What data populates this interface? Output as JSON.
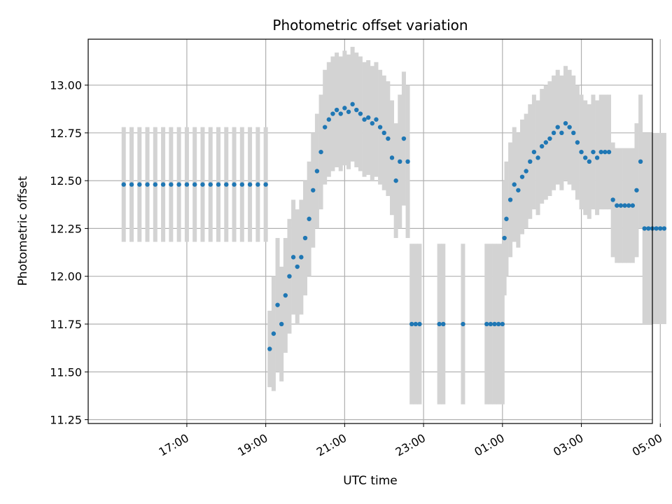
{
  "chart_data": {
    "type": "scatter",
    "title": "Photometric offset variation",
    "xlabel": "UTC time",
    "ylabel": "Photometric offset",
    "x_unit": "hours since 00:00 of first day (values above 24 are the next day)",
    "xlim": [
      14.5,
      28.8
    ],
    "ylim": [
      11.23,
      13.24
    ],
    "x_ticks": [
      {
        "value": 17,
        "label": "17:00"
      },
      {
        "value": 19,
        "label": "19:00"
      },
      {
        "value": 21,
        "label": "21:00"
      },
      {
        "value": 23,
        "label": "23:00"
      },
      {
        "value": 25,
        "label": "01:00"
      },
      {
        "value": 27,
        "label": "03:00"
      },
      {
        "value": 29,
        "label": "05:00"
      }
    ],
    "y_ticks": [
      {
        "value": 11.25,
        "label": "11.25"
      },
      {
        "value": 11.5,
        "label": "11.50"
      },
      {
        "value": 11.75,
        "label": "11.75"
      },
      {
        "value": 12.0,
        "label": "12.00"
      },
      {
        "value": 12.25,
        "label": "12.25"
      },
      {
        "value": 12.5,
        "label": "12.50"
      },
      {
        "value": 12.75,
        "label": "12.75"
      },
      {
        "value": 13.0,
        "label": "13.00"
      }
    ],
    "grid": true,
    "series": [
      {
        "name": "Photometric offset",
        "marker_color": "#1f77b4",
        "errorbar_color": "#d3d3d3",
        "note": "each point: [time_hours, offset, error]",
        "points": [
          [
            15.4,
            12.48,
            0.3
          ],
          [
            15.6,
            12.48,
            0.3
          ],
          [
            15.8,
            12.48,
            0.3
          ],
          [
            16.0,
            12.48,
            0.3
          ],
          [
            16.2,
            12.48,
            0.3
          ],
          [
            16.4,
            12.48,
            0.3
          ],
          [
            16.6,
            12.48,
            0.3
          ],
          [
            16.8,
            12.48,
            0.3
          ],
          [
            17.0,
            12.48,
            0.3
          ],
          [
            17.2,
            12.48,
            0.3
          ],
          [
            17.4,
            12.48,
            0.3
          ],
          [
            17.6,
            12.48,
            0.3
          ],
          [
            17.8,
            12.48,
            0.3
          ],
          [
            18.0,
            12.48,
            0.3
          ],
          [
            18.2,
            12.48,
            0.3
          ],
          [
            18.4,
            12.48,
            0.3
          ],
          [
            18.6,
            12.48,
            0.3
          ],
          [
            18.8,
            12.48,
            0.3
          ],
          [
            19.0,
            12.48,
            0.3
          ],
          [
            19.1,
            11.62,
            0.2
          ],
          [
            19.2,
            11.7,
            0.3
          ],
          [
            19.3,
            11.85,
            0.35
          ],
          [
            19.4,
            11.75,
            0.3
          ],
          [
            19.5,
            11.9,
            0.3
          ],
          [
            19.6,
            12.0,
            0.3
          ],
          [
            19.7,
            12.1,
            0.3
          ],
          [
            19.8,
            12.05,
            0.3
          ],
          [
            19.9,
            12.1,
            0.3
          ],
          [
            20.0,
            12.2,
            0.3
          ],
          [
            20.1,
            12.3,
            0.3
          ],
          [
            20.2,
            12.45,
            0.3
          ],
          [
            20.3,
            12.55,
            0.3
          ],
          [
            20.4,
            12.65,
            0.3
          ],
          [
            20.5,
            12.78,
            0.3
          ],
          [
            20.6,
            12.82,
            0.3
          ],
          [
            20.7,
            12.85,
            0.3
          ],
          [
            20.8,
            12.87,
            0.3
          ],
          [
            20.9,
            12.85,
            0.3
          ],
          [
            21.0,
            12.88,
            0.3
          ],
          [
            21.1,
            12.86,
            0.3
          ],
          [
            21.2,
            12.9,
            0.3
          ],
          [
            21.3,
            12.87,
            0.3
          ],
          [
            21.4,
            12.85,
            0.3
          ],
          [
            21.5,
            12.82,
            0.3
          ],
          [
            21.6,
            12.83,
            0.3
          ],
          [
            21.7,
            12.8,
            0.3
          ],
          [
            21.8,
            12.82,
            0.3
          ],
          [
            21.9,
            12.78,
            0.3
          ],
          [
            22.0,
            12.75,
            0.3
          ],
          [
            22.1,
            12.72,
            0.3
          ],
          [
            22.2,
            12.62,
            0.3
          ],
          [
            22.3,
            12.5,
            0.3
          ],
          [
            22.4,
            12.6,
            0.35
          ],
          [
            22.5,
            12.72,
            0.35
          ],
          [
            22.6,
            12.6,
            0.4
          ],
          [
            22.7,
            11.75,
            0.42
          ],
          [
            22.8,
            11.75,
            0.42
          ],
          [
            22.9,
            11.75,
            0.42
          ],
          [
            23.4,
            11.75,
            0.42
          ],
          [
            23.5,
            11.75,
            0.42
          ],
          [
            24.0,
            11.75,
            0.42
          ],
          [
            24.6,
            11.75,
            0.42
          ],
          [
            24.7,
            11.75,
            0.42
          ],
          [
            24.8,
            11.75,
            0.42
          ],
          [
            24.9,
            11.75,
            0.42
          ],
          [
            25.0,
            11.75,
            0.42
          ],
          [
            25.05,
            12.2,
            0.3
          ],
          [
            25.1,
            12.3,
            0.3
          ],
          [
            25.2,
            12.4,
            0.3
          ],
          [
            25.3,
            12.48,
            0.3
          ],
          [
            25.4,
            12.45,
            0.3
          ],
          [
            25.5,
            12.52,
            0.3
          ],
          [
            25.6,
            12.55,
            0.3
          ],
          [
            25.7,
            12.6,
            0.3
          ],
          [
            25.8,
            12.65,
            0.3
          ],
          [
            25.9,
            12.62,
            0.3
          ],
          [
            26.0,
            12.68,
            0.3
          ],
          [
            26.1,
            12.7,
            0.3
          ],
          [
            26.2,
            12.72,
            0.3
          ],
          [
            26.3,
            12.75,
            0.3
          ],
          [
            26.4,
            12.78,
            0.3
          ],
          [
            26.5,
            12.75,
            0.3
          ],
          [
            26.6,
            12.8,
            0.3
          ],
          [
            26.7,
            12.78,
            0.3
          ],
          [
            26.8,
            12.75,
            0.3
          ],
          [
            26.9,
            12.7,
            0.3
          ],
          [
            27.0,
            12.65,
            0.3
          ],
          [
            27.1,
            12.62,
            0.3
          ],
          [
            27.2,
            12.6,
            0.3
          ],
          [
            27.3,
            12.65,
            0.3
          ],
          [
            27.4,
            12.62,
            0.3
          ],
          [
            27.5,
            12.65,
            0.3
          ],
          [
            27.6,
            12.65,
            0.3
          ],
          [
            27.7,
            12.65,
            0.3
          ],
          [
            27.8,
            12.4,
            0.3
          ],
          [
            27.9,
            12.37,
            0.3
          ],
          [
            28.0,
            12.37,
            0.3
          ],
          [
            28.1,
            12.37,
            0.3
          ],
          [
            28.2,
            12.37,
            0.3
          ],
          [
            28.3,
            12.37,
            0.3
          ],
          [
            28.4,
            12.45,
            0.35
          ],
          [
            28.5,
            12.6,
            0.35
          ],
          [
            28.6,
            12.25,
            0.5
          ],
          [
            28.7,
            12.25,
            0.5
          ],
          [
            28.8,
            12.25,
            0.5
          ],
          [
            28.9,
            12.25,
            0.5
          ],
          [
            29.0,
            12.25,
            0.5
          ],
          [
            29.1,
            12.25,
            0.5
          ]
        ]
      }
    ]
  }
}
